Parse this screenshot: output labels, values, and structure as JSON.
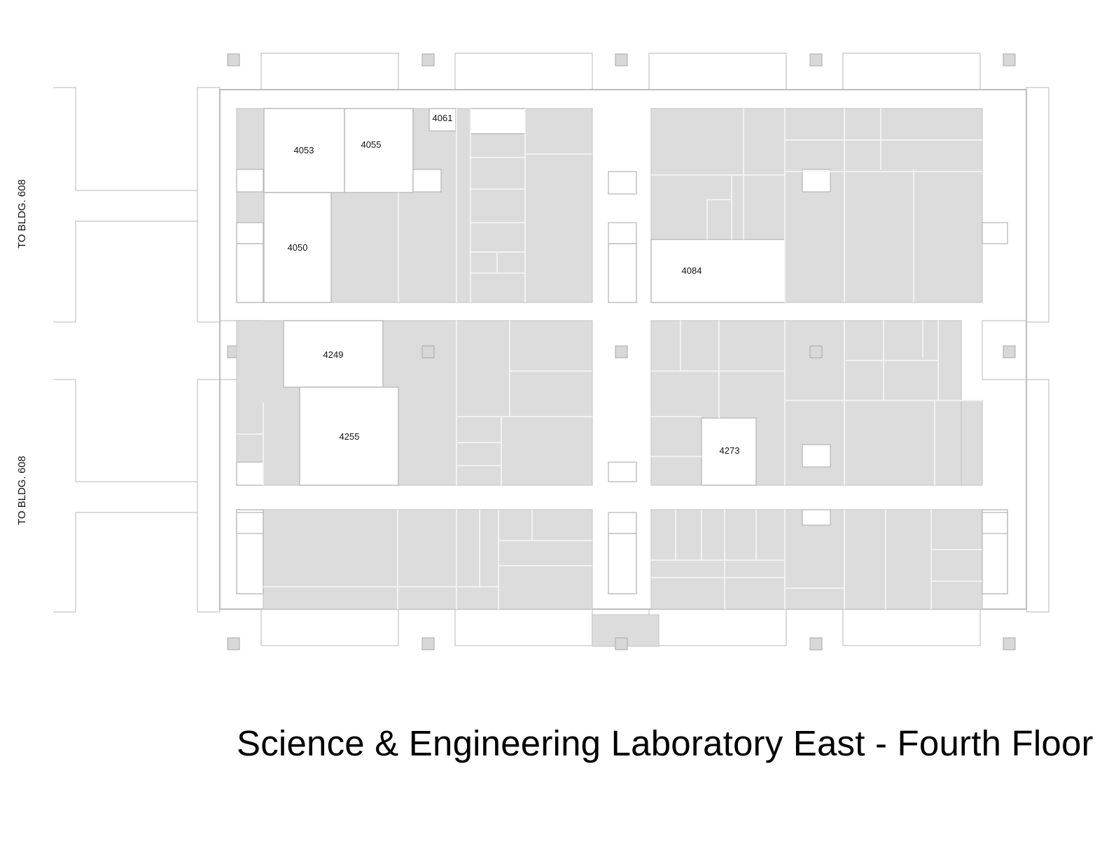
{
  "title": "Science & Engineering Laboratory East - Fourth Floor",
  "connectors": [
    {
      "label": "TO BLDG. 608"
    },
    {
      "label": "TO BLDG. 608"
    }
  ],
  "rooms": [
    {
      "number": "4053"
    },
    {
      "number": "4055"
    },
    {
      "number": "4061"
    },
    {
      "number": "4050"
    },
    {
      "number": "4084"
    },
    {
      "number": "4249"
    },
    {
      "number": "4255"
    },
    {
      "number": "4273"
    }
  ]
}
